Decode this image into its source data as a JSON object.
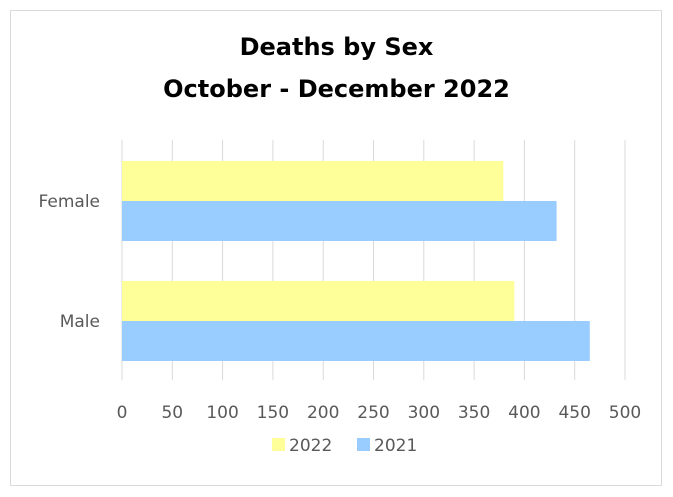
{
  "chart_data": {
    "type": "bar",
    "orientation": "horizontal",
    "title": [
      "Deaths by Sex",
      "October - December 2022"
    ],
    "categories": [
      "Female",
      "Male"
    ],
    "series": [
      {
        "name": "2022",
        "values": [
          379,
          390
        ],
        "color": "#ffff99"
      },
      {
        "name": "2021",
        "values": [
          432,
          465
        ],
        "color": "#99ccff"
      }
    ],
    "xlim": [
      0,
      500
    ],
    "xticks": [
      "0",
      "50",
      "100",
      "150",
      "200",
      "250",
      "300",
      "350",
      "400",
      "450",
      "500"
    ],
    "grid": true,
    "legend": "bottom"
  }
}
